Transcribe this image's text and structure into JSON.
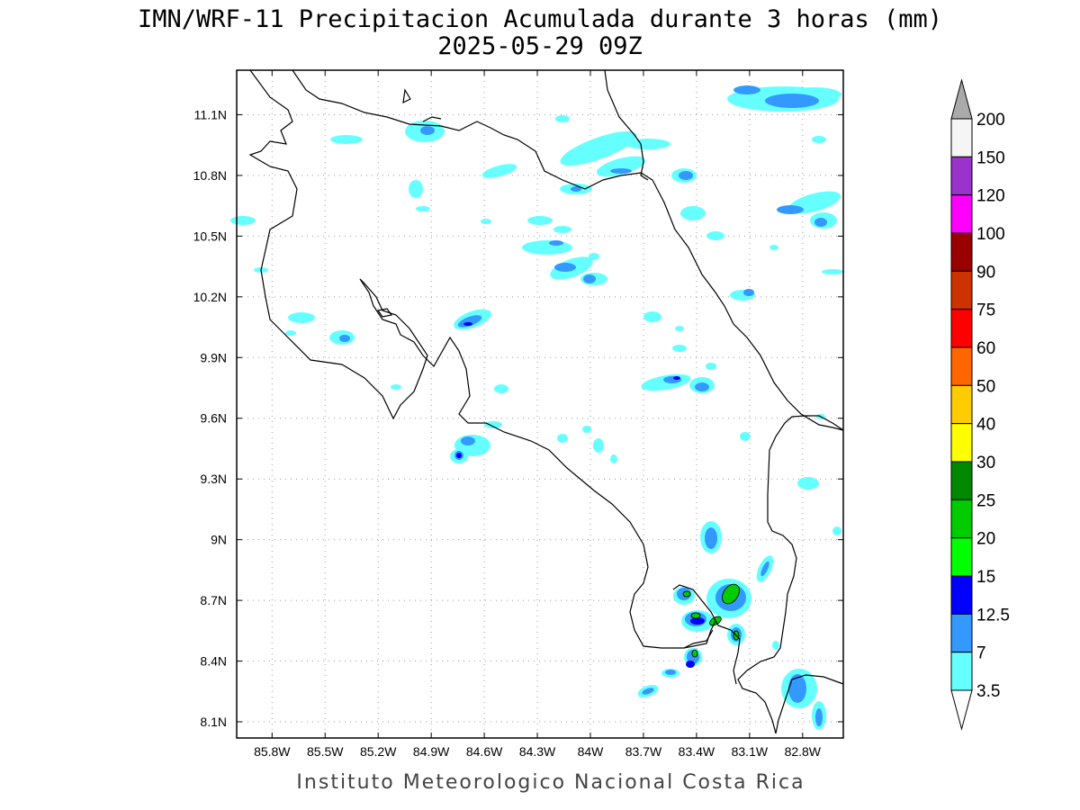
{
  "title": {
    "line1": "IMN/WRF-11 Precipitacion Acumulada durante 3 horas (mm)",
    "line2": "2025-05-29 09Z"
  },
  "credit": "Instituto Meteorologico Nacional Costa Rica",
  "map": {
    "lon_range": [
      -86.0,
      -82.57
    ],
    "lat_range": [
      8.02,
      11.32
    ],
    "x_ticks": [
      "85.8W",
      "85.5W",
      "85.2W",
      "84.9W",
      "84.6W",
      "84.3W",
      "84W",
      "83.7W",
      "83.4W",
      "83.1W",
      "82.8W"
    ],
    "x_tick_values": [
      -85.8,
      -85.5,
      -85.2,
      -84.9,
      -84.6,
      -84.3,
      -84.0,
      -83.7,
      -83.4,
      -83.1,
      -82.8
    ],
    "y_ticks": [
      "11.1N",
      "10.8N",
      "10.5N",
      "10.2N",
      "9.9N",
      "9.6N",
      "9.3N",
      "9N",
      "8.7N",
      "8.4N",
      "8.1N"
    ],
    "y_tick_values": [
      11.1,
      10.8,
      10.5,
      10.2,
      9.9,
      9.6,
      9.3,
      9.0,
      8.7,
      8.4,
      8.1
    ],
    "gridlines": "dotted"
  },
  "colorbar": {
    "labels": [
      "200",
      "150",
      "120",
      "100",
      "90",
      "75",
      "60",
      "50",
      "40",
      "30",
      "25",
      "20",
      "15",
      "12.5",
      "7",
      "3.5"
    ],
    "colors": [
      "#f5f5f5",
      "#9933cc",
      "#ff00ff",
      "#990000",
      "#cc3300",
      "#ff0000",
      "#ff6600",
      "#ffcc00",
      "#ffff00",
      "#008800",
      "#00cc00",
      "#00ff00",
      "#0000ff",
      "#3399ff",
      "#66ffff"
    ],
    "top_arrow_color": "#aaaaaa",
    "bottom_arrow_color": "#ffffff"
  },
  "precip_levels": {
    "light": "#66ffff",
    "moderate": "#3399ff",
    "heavy": "#0000ff",
    "very_heavy": "#00cc00"
  }
}
